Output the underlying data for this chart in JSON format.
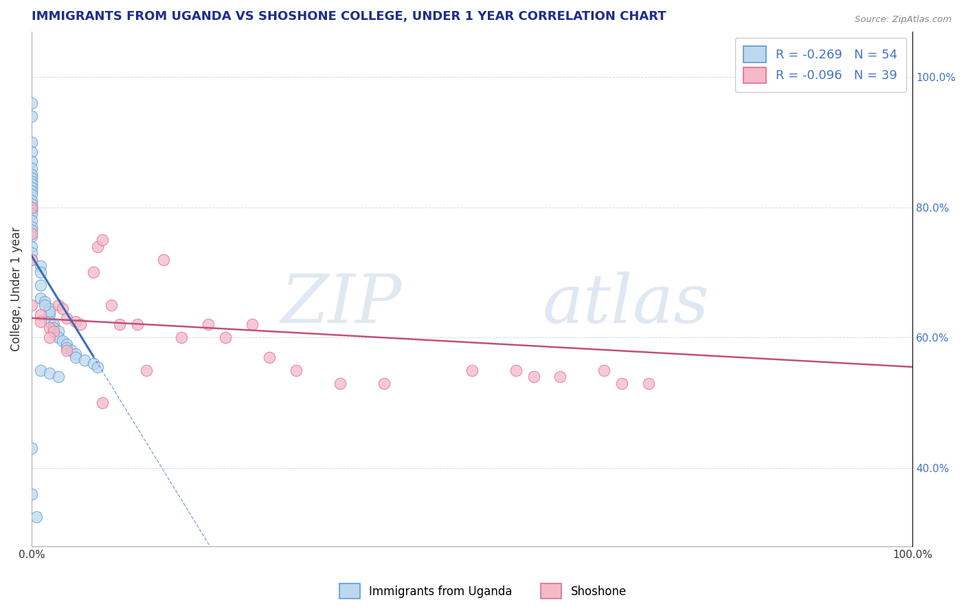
{
  "title": "IMMIGRANTS FROM UGANDA VS SHOSHONE COLLEGE, UNDER 1 YEAR CORRELATION CHART",
  "source": "Source: ZipAtlas.com",
  "ylabel": "College, Under 1 year",
  "legend_label1": "Immigrants from Uganda",
  "legend_label2": "Shoshone",
  "R1": -0.269,
  "N1": 54,
  "R2": -0.096,
  "N2": 39,
  "blue_edge": "#5b9bd5",
  "blue_face": "#bdd7ee",
  "pink_edge": "#e06c8a",
  "pink_face": "#f4b8c8",
  "line_blue": "#3a6eb5",
  "line_pink": "#c0507a",
  "xlim": [
    0,
    100
  ],
  "ylim": [
    28,
    107
  ],
  "yticks": [
    40,
    60,
    80,
    100
  ],
  "ytick_labels": [
    "40.0%",
    "60.0%",
    "80.0%",
    "100.0%"
  ],
  "blue_x": [
    0.0,
    0.0,
    0.0,
    0.0,
    0.0,
    0.0,
    0.0,
    0.0,
    0.0,
    0.0,
    0.0,
    0.0,
    0.0,
    0.0,
    0.0,
    0.0,
    0.0,
    0.0,
    0.0,
    0.0,
    0.0,
    0.0,
    0.0,
    0.0,
    0.0,
    1.0,
    1.0,
    1.0,
    1.0,
    1.5,
    2.0,
    2.0,
    2.0,
    2.5,
    2.5,
    3.0,
    3.0,
    3.5,
    4.0,
    4.0,
    4.5,
    5.0,
    5.0,
    6.0,
    7.0,
    7.5,
    1.0,
    2.0,
    3.0,
    2.0,
    1.5,
    0.0,
    0.0,
    0.5
  ],
  "blue_y": [
    96.0,
    94.0,
    90.0,
    88.5,
    87.0,
    86.0,
    85.0,
    84.5,
    84.0,
    83.5,
    83.0,
    82.5,
    82.0,
    81.0,
    80.5,
    80.0,
    79.5,
    79.0,
    78.0,
    77.0,
    76.5,
    75.5,
    74.0,
    73.0,
    72.0,
    71.0,
    70.0,
    68.0,
    66.0,
    65.5,
    64.5,
    63.5,
    62.5,
    62.0,
    61.5,
    61.0,
    60.0,
    59.5,
    59.0,
    58.5,
    58.0,
    57.5,
    57.0,
    56.5,
    56.0,
    55.5,
    55.0,
    54.5,
    54.0,
    64.0,
    65.0,
    43.0,
    36.0,
    32.5
  ],
  "pink_x": [
    0.0,
    0.0,
    0.0,
    0.0,
    1.0,
    1.0,
    2.0,
    2.5,
    3.0,
    3.5,
    4.0,
    5.0,
    5.5,
    7.0,
    7.5,
    8.0,
    9.0,
    10.0,
    12.0,
    13.0,
    15.0,
    17.0,
    20.0,
    22.0,
    25.0,
    27.0,
    30.0,
    35.0,
    40.0,
    50.0,
    55.0,
    57.0,
    60.0,
    65.0,
    67.0,
    70.0,
    2.0,
    4.0,
    8.0
  ],
  "pink_y": [
    80.0,
    76.0,
    72.0,
    65.0,
    63.5,
    62.5,
    61.5,
    61.0,
    65.0,
    64.5,
    63.0,
    62.5,
    62.0,
    70.0,
    74.0,
    75.0,
    65.0,
    62.0,
    62.0,
    55.0,
    72.0,
    60.0,
    62.0,
    60.0,
    62.0,
    57.0,
    55.0,
    53.0,
    53.0,
    55.0,
    55.0,
    54.0,
    54.0,
    55.0,
    53.0,
    53.0,
    60.0,
    58.0,
    50.0
  ],
  "blue_line_x0": 0,
  "blue_line_y0": 72.5,
  "blue_line_slope": -2.2,
  "blue_dash_start": 7,
  "blue_line_x1": 100,
  "pink_line_x0": 0,
  "pink_line_y0": 63.0,
  "pink_line_slope": -0.075,
  "pink_line_x1": 100
}
